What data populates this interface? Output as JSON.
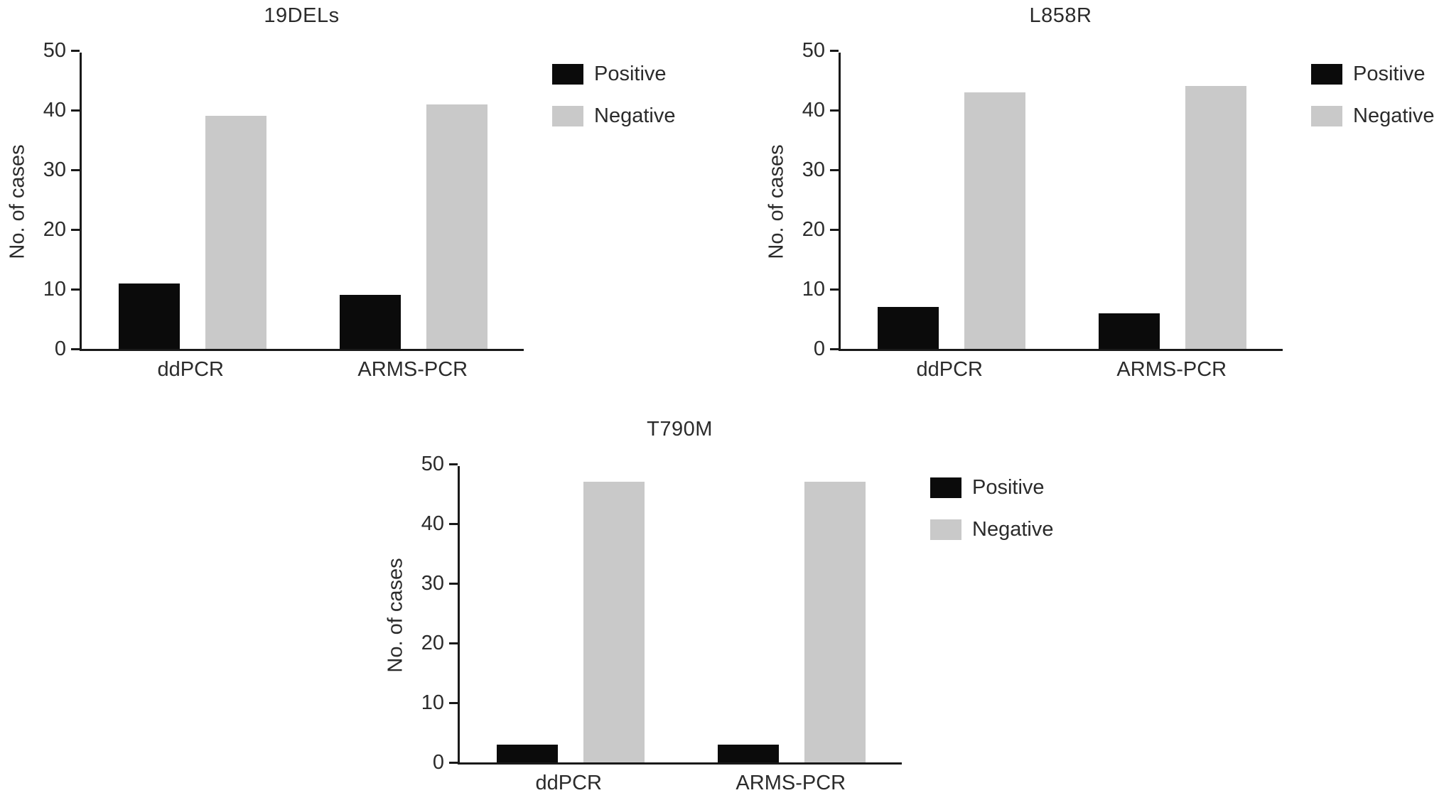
{
  "figure": {
    "description_texts": {
      "y_axis_label": "No. of cases"
    }
  },
  "chart_data": [
    {
      "type": "bar",
      "title": "19DELs",
      "xlabel": "",
      "ylabel": "No. of cases",
      "categories": [
        "ddPCR",
        "ARMS-PCR"
      ],
      "series": [
        {
          "name": "Positive",
          "color": "#0b0b0b",
          "values": [
            11,
            9
          ]
        },
        {
          "name": "Negative",
          "color": "#c9c9c9",
          "values": [
            39,
            41
          ]
        }
      ],
      "ylim": [
        0,
        50
      ],
      "yticks": [
        0,
        10,
        20,
        30,
        40,
        50
      ],
      "grid": false,
      "legend_position": "right-top"
    },
    {
      "type": "bar",
      "title": "L858R",
      "xlabel": "",
      "ylabel": "No. of cases",
      "categories": [
        "ddPCR",
        "ARMS-PCR"
      ],
      "series": [
        {
          "name": "Positive",
          "color": "#0b0b0b",
          "values": [
            7,
            6
          ]
        },
        {
          "name": "Negative",
          "color": "#c9c9c9",
          "values": [
            43,
            44
          ]
        }
      ],
      "ylim": [
        0,
        50
      ],
      "yticks": [
        0,
        10,
        20,
        30,
        40,
        50
      ],
      "grid": false,
      "legend_position": "right-top"
    },
    {
      "type": "bar",
      "title": "T790M",
      "xlabel": "",
      "ylabel": "No. of cases",
      "categories": [
        "ddPCR",
        "ARMS-PCR"
      ],
      "series": [
        {
          "name": "Positive",
          "color": "#0b0b0b",
          "values": [
            3,
            3
          ]
        },
        {
          "name": "Negative",
          "color": "#c9c9c9",
          "values": [
            47,
            47
          ]
        }
      ],
      "ylim": [
        0,
        50
      ],
      "yticks": [
        0,
        10,
        20,
        30,
        40,
        50
      ],
      "grid": false,
      "legend_position": "right-top"
    }
  ]
}
